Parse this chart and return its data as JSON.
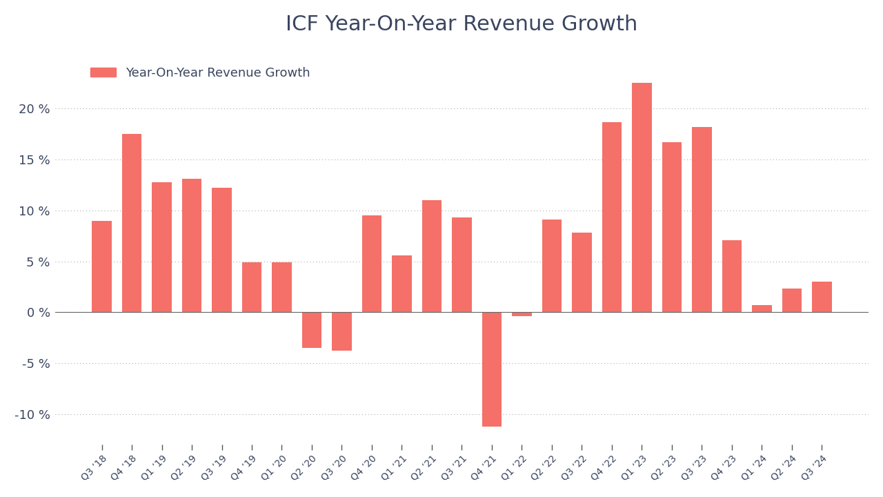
{
  "title": "ICF Year-On-Year Revenue Growth",
  "legend_label": "Year-On-Year Revenue Growth",
  "bar_color": "#F47068",
  "background_color": "#ffffff",
  "categories": [
    "Q3 ’18",
    "Q4 ’18",
    "Q1 ’19",
    "Q2 ’19",
    "Q3 ’19",
    "Q4 ’19",
    "Q1 ’20",
    "Q2 ’20",
    "Q3 ’20",
    "Q4 ’20",
    "Q1 ’21",
    "Q2 ’21",
    "Q3 ’21",
    "Q4 ’21",
    "Q1 ’22",
    "Q2 ’22",
    "Q3 ’22",
    "Q4 ’22",
    "Q1 ’23",
    "Q2 ’23",
    "Q3 ’23",
    "Q4 ’23",
    "Q1 ’24",
    "Q2 ’24",
    "Q3 ’24"
  ],
  "values": [
    9.0,
    17.5,
    12.8,
    13.1,
    12.2,
    4.9,
    4.9,
    -3.5,
    -3.8,
    9.5,
    5.6,
    11.0,
    9.3,
    -11.2,
    -0.4,
    9.1,
    7.8,
    18.7,
    22.5,
    16.7,
    18.2,
    7.1,
    0.7,
    2.3,
    3.0
  ],
  "ylim": [
    -13,
    26
  ],
  "yticks": [
    -10,
    -5,
    0,
    5,
    10,
    15,
    20
  ],
  "title_fontsize": 22,
  "axis_label_color": "#3a4560",
  "tick_label_color": "#3a4560",
  "grid_color": "#aaaaaa",
  "bar_width": 0.65
}
